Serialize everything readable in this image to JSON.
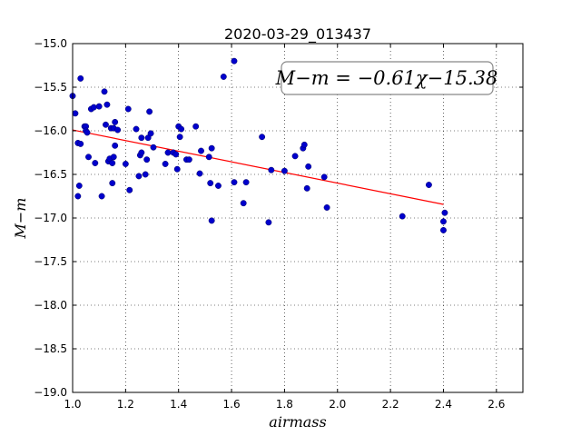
{
  "chart_data": {
    "type": "scatter",
    "title": "2020-03-29_013437",
    "xlabel": "airmass",
    "ylabel": "M−m",
    "xlim": [
      1.0,
      2.7
    ],
    "ylim": [
      -19.0,
      -15.0
    ],
    "y_inverted": true,
    "grid": true,
    "x_ticks": [
      "1.0",
      "1.2",
      "1.4",
      "1.6",
      "1.8",
      "2.0",
      "2.2",
      "2.4",
      "2.6"
    ],
    "y_ticks": [
      "−15.0",
      "−15.5",
      "−16.0",
      "−16.5",
      "−17.0",
      "−17.5",
      "−18.0",
      "−18.5",
      "−19.0"
    ],
    "annotation": "M−m = −0.61χ−15.38",
    "fit_line": {
      "slope": -0.61,
      "intercept": -15.38,
      "x_range": [
        1.0,
        2.4
      ],
      "color": "#ff0000"
    },
    "point_color": "#0000cc",
    "points": [
      [
        1.0,
        -15.6
      ],
      [
        1.01,
        -15.8
      ],
      [
        1.02,
        -16.14
      ],
      [
        1.02,
        -16.75
      ],
      [
        1.025,
        -16.63
      ],
      [
        1.03,
        -15.4
      ],
      [
        1.03,
        -16.15
      ],
      [
        1.045,
        -15.95
      ],
      [
        1.05,
        -15.95
      ],
      [
        1.05,
        -16.0
      ],
      [
        1.055,
        -16.02
      ],
      [
        1.06,
        -16.3
      ],
      [
        1.07,
        -15.75
      ],
      [
        1.08,
        -15.73
      ],
      [
        1.085,
        -16.37
      ],
      [
        1.1,
        -15.72
      ],
      [
        1.11,
        -16.75
      ],
      [
        1.12,
        -15.55
      ],
      [
        1.125,
        -15.93
      ],
      [
        1.13,
        -15.7
      ],
      [
        1.135,
        -16.35
      ],
      [
        1.14,
        -16.32
      ],
      [
        1.145,
        -15.97
      ],
      [
        1.15,
        -16.37
      ],
      [
        1.15,
        -16.6
      ],
      [
        1.155,
        -15.97
      ],
      [
        1.155,
        -16.3
      ],
      [
        1.16,
        -15.9
      ],
      [
        1.16,
        -16.17
      ],
      [
        1.17,
        -15.99
      ],
      [
        1.2,
        -16.38
      ],
      [
        1.21,
        -15.75
      ],
      [
        1.215,
        -16.68
      ],
      [
        1.24,
        -15.98
      ],
      [
        1.25,
        -16.52
      ],
      [
        1.255,
        -16.28
      ],
      [
        1.26,
        -16.08
      ],
      [
        1.26,
        -16.25
      ],
      [
        1.275,
        -16.5
      ],
      [
        1.28,
        -16.33
      ],
      [
        1.285,
        -16.08
      ],
      [
        1.29,
        -15.78
      ],
      [
        1.295,
        -16.03
      ],
      [
        1.305,
        -16.19
      ],
      [
        1.35,
        -16.38
      ],
      [
        1.36,
        -16.25
      ],
      [
        1.38,
        -16.25
      ],
      [
        1.39,
        -16.27
      ],
      [
        1.395,
        -16.44
      ],
      [
        1.4,
        -15.95
      ],
      [
        1.405,
        -16.07
      ],
      [
        1.41,
        -15.98
      ],
      [
        1.43,
        -16.33
      ],
      [
        1.44,
        -16.33
      ],
      [
        1.465,
        -15.95
      ],
      [
        1.48,
        -16.49
      ],
      [
        1.485,
        -16.23
      ],
      [
        1.515,
        -16.3
      ],
      [
        1.52,
        -16.6
      ],
      [
        1.525,
        -16.2
      ],
      [
        1.525,
        -17.03
      ],
      [
        1.55,
        -16.63
      ],
      [
        1.57,
        -15.38
      ],
      [
        1.61,
        -15.2
      ],
      [
        1.61,
        -16.59
      ],
      [
        1.645,
        -16.83
      ],
      [
        1.655,
        -16.59
      ],
      [
        1.715,
        -16.07
      ],
      [
        1.74,
        -17.05
      ],
      [
        1.75,
        -16.45
      ],
      [
        1.8,
        -16.46
      ],
      [
        1.84,
        -16.29
      ],
      [
        1.87,
        -16.2
      ],
      [
        1.875,
        -16.16
      ],
      [
        1.885,
        -16.66
      ],
      [
        1.89,
        -16.41
      ],
      [
        1.95,
        -16.53
      ],
      [
        1.96,
        -16.88
      ],
      [
        2.245,
        -16.98
      ],
      [
        2.345,
        -16.62
      ],
      [
        2.4,
        -17.04
      ],
      [
        2.4,
        -17.14
      ],
      [
        2.405,
        -16.94
      ]
    ]
  }
}
